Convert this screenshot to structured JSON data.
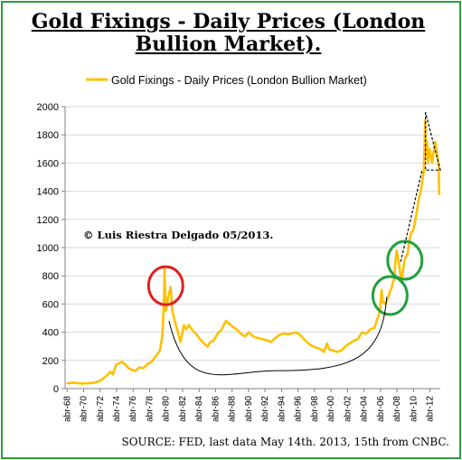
{
  "title_lines": [
    "Gold Fixings - Daily Prices (London",
    "Bullion Market)."
  ],
  "source_note": "SOURCE: FED, last data May 14th. 2013, 15th from CNBC.",
  "watermark": "© Luis Riestra Delgado 05/2013.",
  "colors": {
    "frame": "#2e9e3e",
    "series": "#ffc000",
    "red_circle": "#e02020",
    "green_circle": "#22a040",
    "trend": "#000000",
    "grid": "#d9d9d9"
  },
  "chart_data": {
    "type": "line",
    "title": "Gold Fixings - Daily Prices (London Bullion Market).",
    "legend": {
      "position": "top",
      "entries": [
        "Gold Fixings - Daily Prices (London Bullion Market)"
      ]
    },
    "ylim": [
      0,
      2000
    ],
    "yticks": [
      0,
      200,
      400,
      600,
      800,
      1000,
      1200,
      1400,
      1600,
      1800,
      2000
    ],
    "grid": "horizontal",
    "xlim": [
      1968.0,
      2013.5
    ],
    "xtick_labels": [
      "abr-68",
      "abr-70",
      "abr-72",
      "abr-74",
      "abr-76",
      "abr-78",
      "abr-80",
      "abr-82",
      "abr-84",
      "abr-86",
      "abr-88",
      "abr-90",
      "abr-92",
      "abr-94",
      "abr-96",
      "abr-98",
      "abr-00",
      "abr-02",
      "abr-04",
      "abr-06",
      "abr-08",
      "abr-10",
      "abr-12"
    ],
    "xtick_years": [
      1968.25,
      1970.25,
      1972.25,
      1974.25,
      1976.25,
      1978.25,
      1980.25,
      1982.25,
      1984.25,
      1986.25,
      1988.25,
      1990.25,
      1992.25,
      1994.25,
      1996.25,
      1998.25,
      2000.25,
      2002.25,
      2004.25,
      2006.25,
      2008.25,
      2010.25,
      2012.25
    ],
    "series": [
      {
        "name": "Gold Fixings - Daily Prices (London Bullion Market)",
        "x": [
          1968.3,
          1969.0,
          1970.0,
          1971.0,
          1971.6,
          1972.0,
          1972.5,
          1973.0,
          1973.5,
          1973.8,
          1974.2,
          1974.9,
          1975.3,
          1975.8,
          1976.5,
          1977.0,
          1977.5,
          1978.0,
          1978.5,
          1979.0,
          1979.5,
          1979.8,
          1980.0,
          1980.06,
          1980.2,
          1980.5,
          1980.8,
          1981.0,
          1981.3,
          1981.6,
          1982.0,
          1982.4,
          1982.7,
          1983.0,
          1983.5,
          1984.0,
          1984.5,
          1985.0,
          1985.3,
          1985.6,
          1986.0,
          1986.5,
          1987.0,
          1987.5,
          1987.9,
          1988.3,
          1988.8,
          1989.3,
          1989.8,
          1990.3,
          1990.8,
          1991.3,
          1992.0,
          1992.6,
          1993.0,
          1993.5,
          1994.0,
          1994.5,
          1995.0,
          1995.5,
          1996.0,
          1996.5,
          1997.0,
          1997.5,
          1998.0,
          1998.5,
          1999.0,
          1999.4,
          1999.75,
          2000.0,
          2000.5,
          2001.0,
          2001.5,
          2002.0,
          2002.5,
          2003.0,
          2003.5,
          2004.0,
          2004.5,
          2005.0,
          2005.5,
          2005.9,
          2006.2,
          2006.37,
          2006.5,
          2006.8,
          2007.0,
          2007.3,
          2007.6,
          2007.9,
          2008.1,
          2008.2,
          2008.5,
          2008.8,
          2009.0,
          2009.2,
          2009.5,
          2009.9,
          2010.2,
          2010.5,
          2010.9,
          2011.2,
          2011.5,
          2011.67,
          2011.75,
          2011.9,
          2012.0,
          2012.2,
          2012.5,
          2012.7,
          2012.9,
          2013.1,
          2013.3,
          2013.37
        ],
        "y": [
          38,
          42,
          36,
          39,
          42,
          50,
          65,
          90,
          120,
          100,
          170,
          190,
          170,
          140,
          125,
          150,
          145,
          175,
          190,
          230,
          270,
          380,
          650,
          850,
          550,
          650,
          720,
          550,
          480,
          420,
          330,
          450,
          420,
          450,
          410,
          380,
          340,
          310,
          300,
          330,
          340,
          390,
          420,
          480,
          460,
          440,
          420,
          390,
          370,
          400,
          370,
          360,
          350,
          340,
          330,
          360,
          380,
          390,
          385,
          390,
          400,
          380,
          350,
          320,
          300,
          290,
          280,
          260,
          320,
          280,
          270,
          260,
          270,
          300,
          320,
          340,
          350,
          400,
          390,
          420,
          430,
          500,
          560,
          700,
          620,
          600,
          620,
          670,
          720,
          780,
          920,
          980,
          880,
          750,
          850,
          920,
          950,
          1100,
          1120,
          1200,
          1350,
          1420,
          1550,
          1900,
          1650,
          1750,
          1600,
          1700,
          1600,
          1680,
          1750,
          1670,
          1580,
          1380
        ]
      }
    ],
    "annotations": [
      {
        "type": "circle",
        "color": "red",
        "center_x": 1980.2,
        "center_y": 730,
        "label": ""
      },
      {
        "type": "circle",
        "color": "green",
        "center_x": 2007.4,
        "center_y": 660,
        "label": ""
      },
      {
        "type": "circle",
        "color": "green",
        "center_x": 2009.2,
        "center_y": 910,
        "label": ""
      },
      {
        "type": "arc",
        "color": "black",
        "from_x": 1980.6,
        "to_x": 2007.0,
        "bottom_y": 140
      },
      {
        "type": "triangle",
        "color": "black",
        "dashed": true,
        "points_xy": [
          [
            2011.7,
            1960
          ],
          [
            2011.7,
            1550
          ],
          [
            2013.5,
            1550
          ]
        ]
      },
      {
        "type": "dashed-line",
        "color": "black",
        "points_xy": [
          [
            2008.7,
            900
          ],
          [
            2011.3,
            1550
          ]
        ]
      }
    ]
  }
}
